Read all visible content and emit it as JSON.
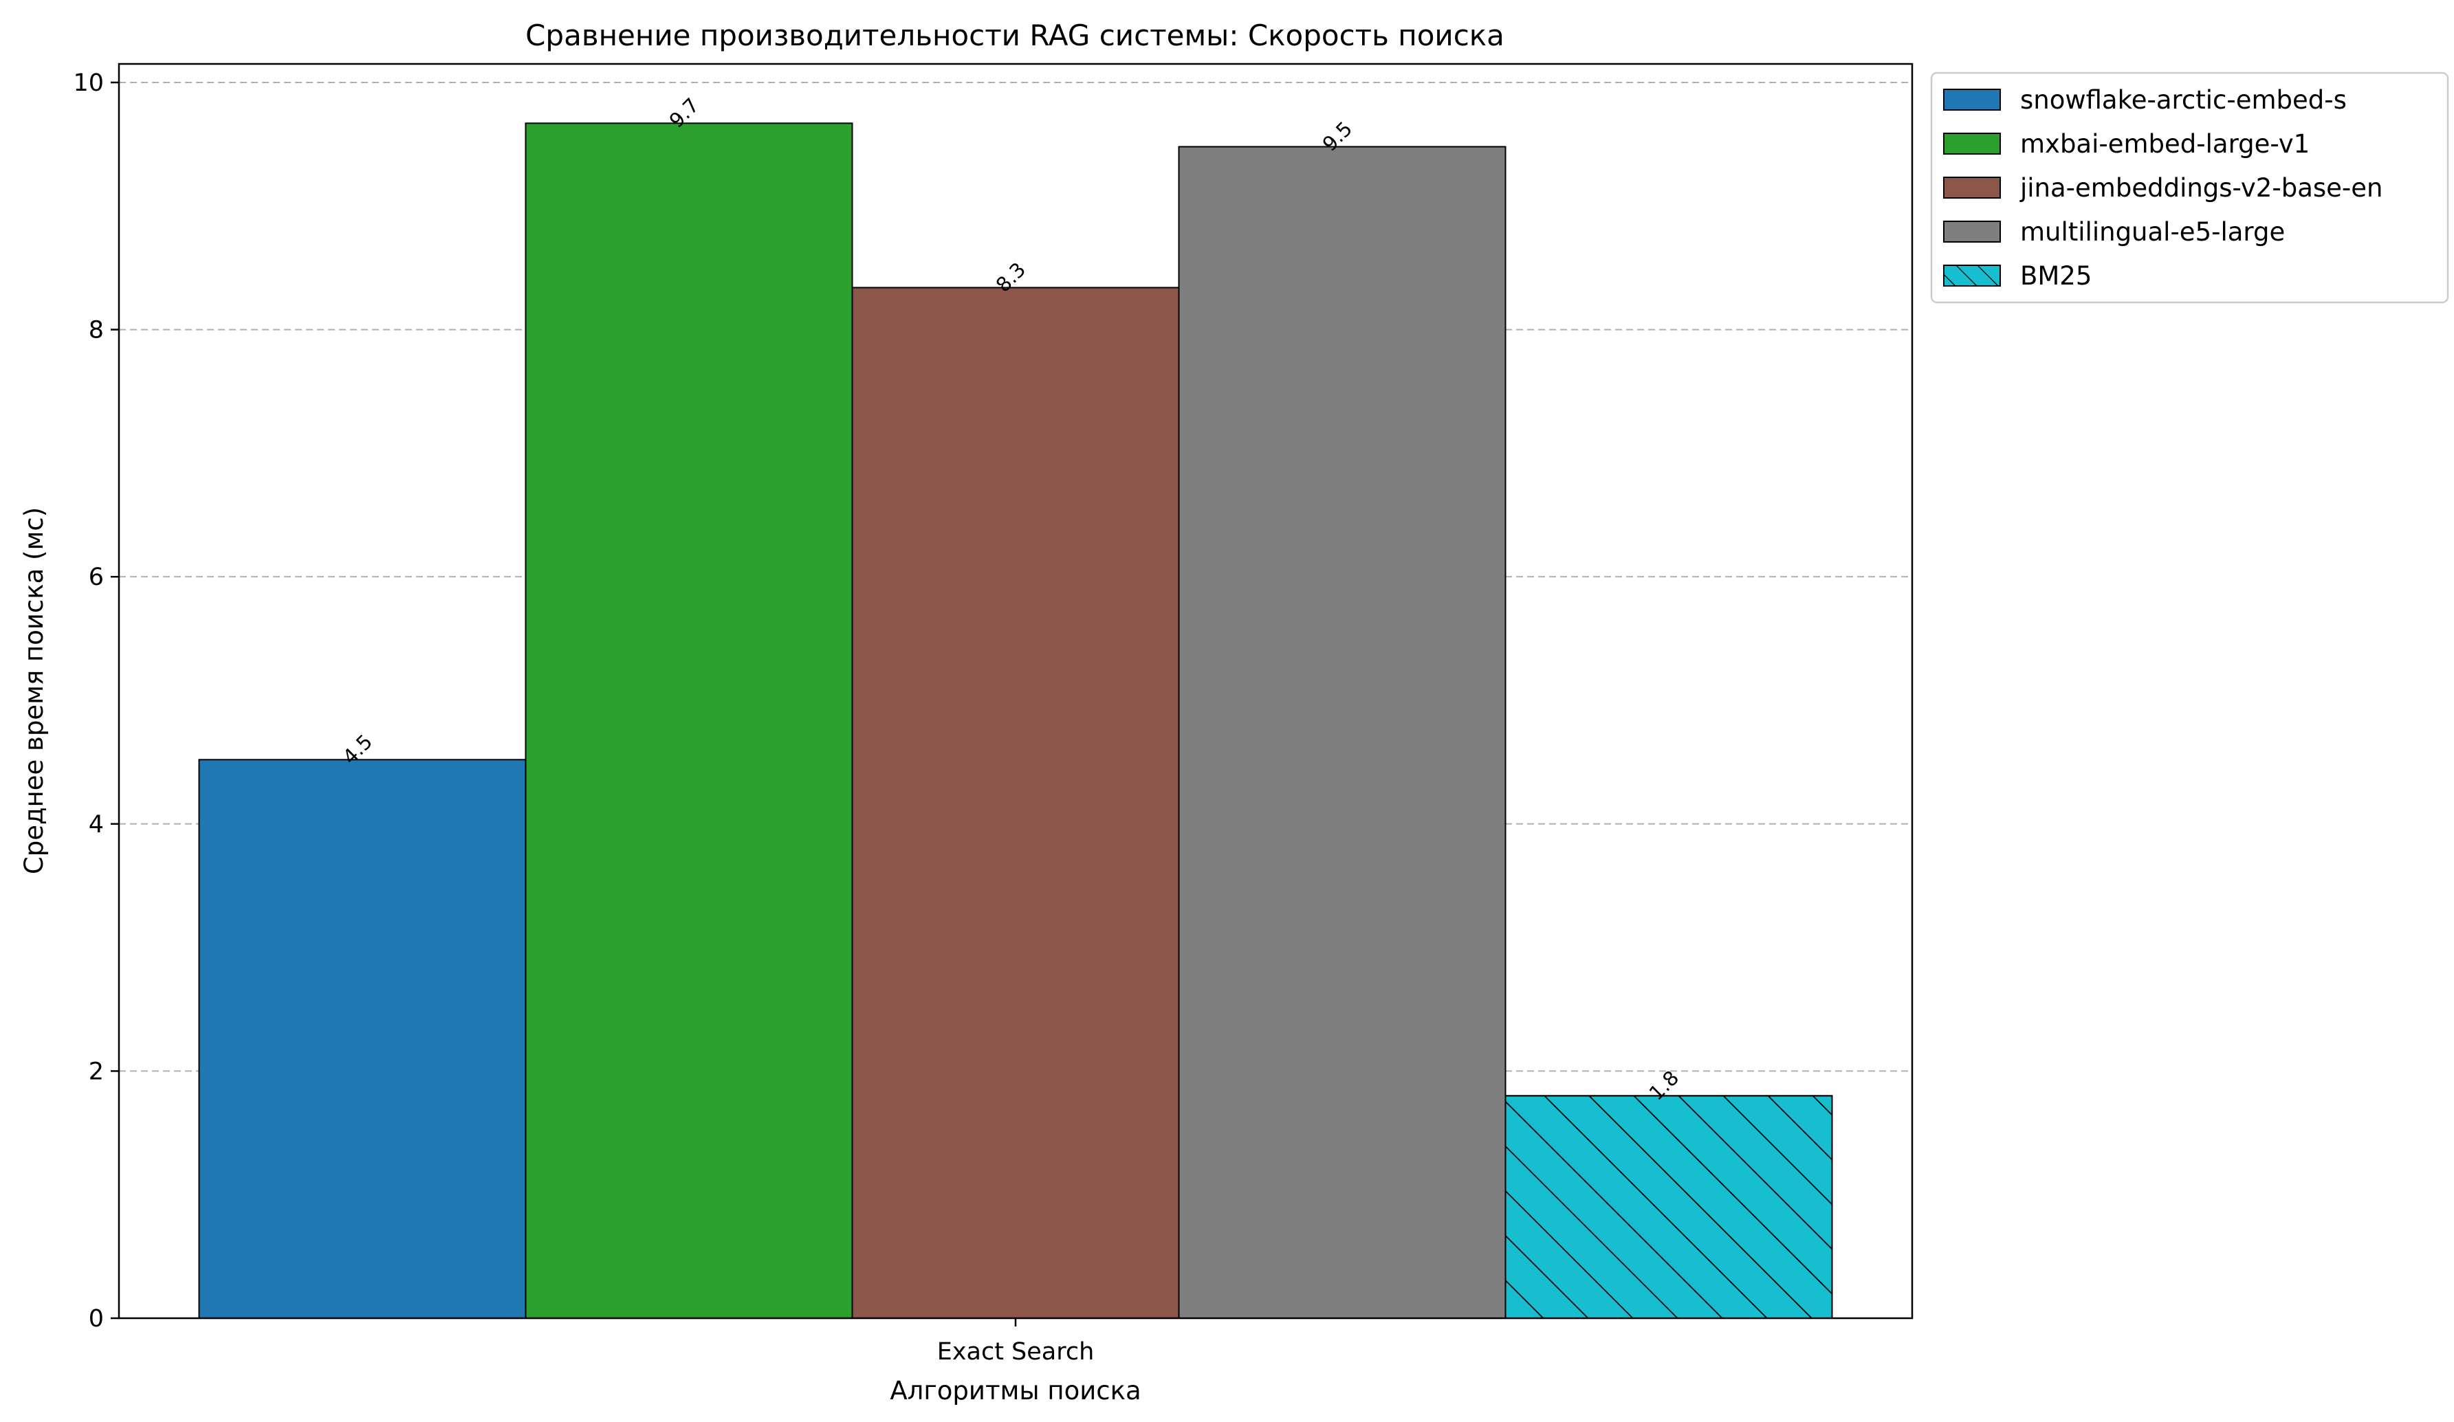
{
  "chart_data": {
    "type": "bar",
    "title": "Сравнение производительности RAG системы: Скорость поиска",
    "xlabel": "Алгоритмы поиска",
    "ylabel": "Среднее время поиска (мс)",
    "categories": [
      "Exact Search"
    ],
    "ylim": [
      0,
      10.15
    ],
    "yticks": [
      0,
      2,
      4,
      6,
      8,
      10
    ],
    "grid": "y-dashed",
    "legend_position": "outside-top-right",
    "series": [
      {
        "name": "snowflake-arctic-embed-s",
        "values": [
          4.52
        ],
        "label": "4.5",
        "color": "#1f77b4",
        "hatch": false
      },
      {
        "name": "mxbai-embed-large-v1",
        "values": [
          9.67
        ],
        "label": "9.7",
        "color": "#2ca02c",
        "hatch": false
      },
      {
        "name": "jina-embeddings-v2-base-en",
        "values": [
          8.34
        ],
        "label": "8.3",
        "color": "#8c564b",
        "hatch": false
      },
      {
        "name": "multilingual-e5-large",
        "values": [
          9.48
        ],
        "label": "9.5",
        "color": "#7f7f7f",
        "hatch": false
      },
      {
        "name": "BM25",
        "values": [
          1.8
        ],
        "label": "1.8",
        "color": "#17becf",
        "hatch": true
      }
    ]
  }
}
